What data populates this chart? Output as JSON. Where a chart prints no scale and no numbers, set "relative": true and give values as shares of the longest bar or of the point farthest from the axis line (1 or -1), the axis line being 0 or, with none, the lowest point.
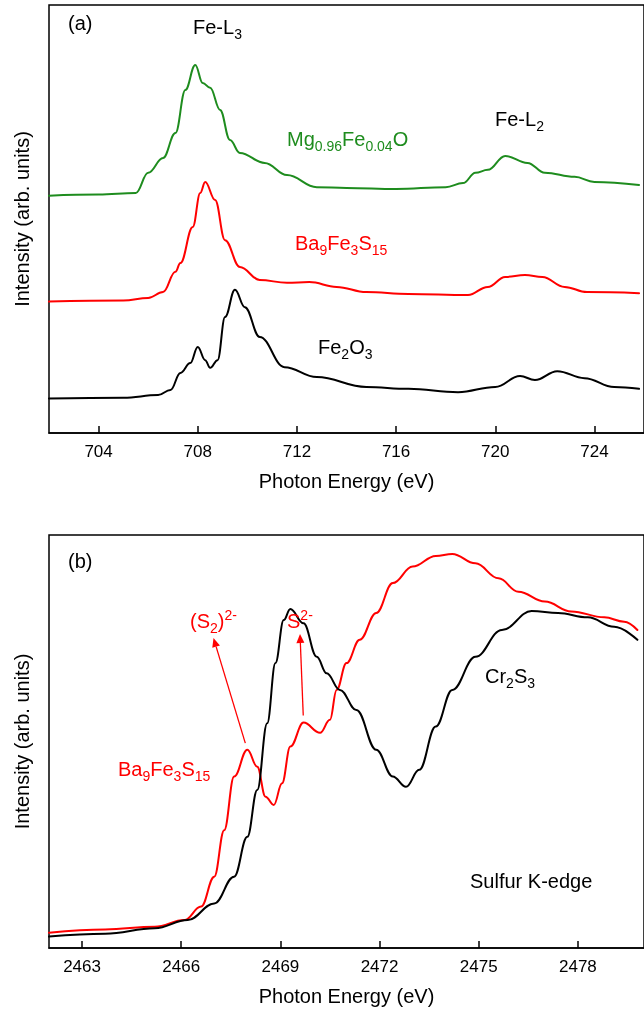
{
  "chart_data": [
    {
      "type": "line",
      "xlabel": "Photon Energy (eV)",
      "ylabel": "Intensity (arb. units)",
      "relative": true,
      "xlim": [
        702,
        726
      ],
      "xticks": [
        704,
        708,
        712,
        716,
        720,
        724
      ],
      "annotations": [
        "(a)",
        "Fe-L$_{3}$",
        "Fe-L$_{2}$"
      ],
      "series": [
        {
          "name": "Mg$_{0.96}$Fe$_{0.04}$O",
          "color": "#1e8c1e",
          "x": [
            702,
            704,
            705.5,
            706,
            706.6,
            707.1,
            707.5,
            707.9,
            708.2,
            708.5,
            708.9,
            709.3,
            709.7,
            710.7,
            711.6,
            712.8,
            714,
            716,
            718,
            718.7,
            719.2,
            719.7,
            720.4,
            721.3,
            722,
            723.2,
            724,
            725.8
          ],
          "values": [
            0.645,
            0.648,
            0.652,
            0.707,
            0.747,
            0.815,
            0.932,
            1.0,
            0.951,
            0.938,
            0.878,
            0.796,
            0.761,
            0.734,
            0.701,
            0.668,
            0.666,
            0.663,
            0.668,
            0.679,
            0.707,
            0.715,
            0.753,
            0.734,
            0.707,
            0.696,
            0.682,
            0.674
          ]
        },
        {
          "name": "Ba$_{9}$Fe$_{3}$S$_{15}$",
          "color": "#ff0000",
          "x": [
            702,
            705,
            706,
            706.6,
            707.1,
            707.3,
            707.8,
            708.1,
            708.3,
            708.7,
            709.1,
            709.7,
            710.5,
            711.6,
            712.5,
            713.6,
            714.8,
            716.5,
            718.9,
            719.7,
            720.4,
            721.2,
            721.9,
            722.8,
            723.7,
            725.8
          ],
          "values": [
            0.357,
            0.36,
            0.367,
            0.383,
            0.438,
            0.462,
            0.56,
            0.652,
            0.682,
            0.633,
            0.524,
            0.451,
            0.416,
            0.408,
            0.41,
            0.397,
            0.383,
            0.378,
            0.375,
            0.397,
            0.424,
            0.429,
            0.424,
            0.397,
            0.383,
            0.38
          ]
        },
        {
          "name": "Fe$_{2}$O$_{3}$",
          "color": "#000000",
          "x": [
            702,
            705,
            706.4,
            706.9,
            707.3,
            707.7,
            708.0,
            708.3,
            708.5,
            708.8,
            709.1,
            709.5,
            709.9,
            710.5,
            711.5,
            712.8,
            714.8,
            716.5,
            718.5,
            720,
            721,
            721.6,
            722.5,
            723.6,
            724.8,
            725.8
          ],
          "values": [
            0.094,
            0.096,
            0.103,
            0.117,
            0.163,
            0.19,
            0.234,
            0.198,
            0.177,
            0.198,
            0.315,
            0.389,
            0.342,
            0.261,
            0.179,
            0.152,
            0.125,
            0.12,
            0.111,
            0.125,
            0.155,
            0.144,
            0.168,
            0.149,
            0.125,
            0.12
          ]
        }
      ]
    },
    {
      "type": "line",
      "xlabel": "Photon Energy (eV)",
      "ylabel": "Intensity (arb. units)",
      "relative": true,
      "xlim": [
        2462,
        2480
      ],
      "xticks": [
        2463,
        2466,
        2469,
        2472,
        2475,
        2478
      ],
      "annotations": [
        "(b)",
        {
          "text": "(S$_{2}$)$^{2-}$",
          "x": 2468.0,
          "y": 0.503
        },
        {
          "text": "S$^{2-}$",
          "x": 2469.7,
          "y": 0.572
        },
        "Sulfur K-edge"
      ],
      "series": [
        {
          "name": "Ba$_{9}$Fe$_{3}$S$_{15}$",
          "color": "#ff0000",
          "x": [
            2462,
            2463.7,
            2465.2,
            2466.1,
            2466.6,
            2467.0,
            2467.3,
            2467.6,
            2468.0,
            2468.3,
            2468.55,
            2468.8,
            2469.05,
            2469.3,
            2469.7,
            2470.2,
            2470.5,
            2470.7,
            2471.0,
            2471.4,
            2471.9,
            2472.4,
            2473.0,
            2473.7,
            2474.2,
            2474.9,
            2475.6,
            2476.2,
            2477.0,
            2477.8,
            2478.8,
            2479.4,
            2479.8
          ],
          "values": [
            0.039,
            0.047,
            0.054,
            0.071,
            0.105,
            0.181,
            0.299,
            0.435,
            0.503,
            0.46,
            0.384,
            0.363,
            0.418,
            0.511,
            0.572,
            0.546,
            0.579,
            0.655,
            0.723,
            0.782,
            0.85,
            0.926,
            0.968,
            0.995,
            1.0,
            0.976,
            0.938,
            0.904,
            0.879,
            0.854,
            0.839,
            0.828,
            0.807
          ]
        },
        {
          "name": "Cr$_{2}$S$_{3}$",
          "color": "#000000",
          "x": [
            2462,
            2463.7,
            2465.2,
            2466.2,
            2467.0,
            2467.6,
            2468.0,
            2468.3,
            2468.6,
            2468.85,
            2469.1,
            2469.3,
            2469.7,
            2470.1,
            2470.4,
            2470.8,
            2471.3,
            2471.9,
            2472.4,
            2472.8,
            2473.2,
            2473.7,
            2474.2,
            2474.9,
            2475.7,
            2476.6,
            2477.4,
            2478.3,
            2479.1,
            2479.8
          ],
          "values": [
            0.029,
            0.036,
            0.05,
            0.071,
            0.113,
            0.181,
            0.282,
            0.401,
            0.57,
            0.723,
            0.832,
            0.86,
            0.824,
            0.739,
            0.697,
            0.655,
            0.604,
            0.503,
            0.435,
            0.409,
            0.452,
            0.562,
            0.655,
            0.739,
            0.807,
            0.855,
            0.85,
            0.839,
            0.815,
            0.782
          ]
        }
      ]
    }
  ]
}
